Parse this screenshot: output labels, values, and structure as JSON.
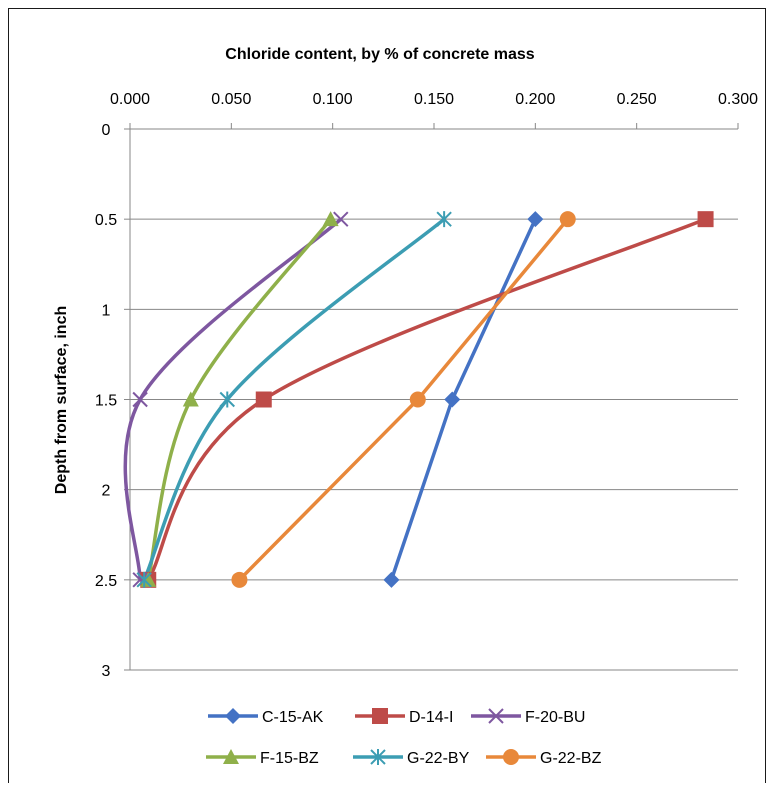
{
  "chart_data": {
    "type": "scatter",
    "x_title": "Chloride content, by % of concrete mass",
    "y_title": "Depth from surface, inch",
    "x_axis": {
      "min": 0.0,
      "max": 0.3,
      "ticks": [
        "0.000",
        "0.050",
        "0.100",
        "0.150",
        "0.200",
        "0.250",
        "0.300"
      ],
      "position": "top"
    },
    "y_axis": {
      "min": 0,
      "max": 3,
      "reversed": true,
      "ticks": [
        "0",
        "0.5",
        "1",
        "1.5",
        "2",
        "2.5",
        "3"
      ]
    },
    "grid": "horizontal",
    "legend_position": "bottom",
    "series": [
      {
        "name": "C-15-AK",
        "color": "#4472C4",
        "marker": "diamond",
        "smooth": false,
        "points": [
          [
            0.2,
            0.5
          ],
          [
            0.159,
            1.5
          ],
          [
            0.129,
            2.5
          ]
        ]
      },
      {
        "name": "D-14-I",
        "color": "#BE4B48",
        "marker": "square",
        "smooth": true,
        "points": [
          [
            0.284,
            0.5
          ],
          [
            0.066,
            1.5
          ],
          [
            0.009,
            2.5
          ]
        ]
      },
      {
        "name": "F-20-BU",
        "color": "#7E57A0",
        "marker": "x",
        "smooth": true,
        "points": [
          [
            0.104,
            0.5
          ],
          [
            0.005,
            1.5
          ],
          [
            0.005,
            2.5
          ]
        ]
      },
      {
        "name": "F-15-BZ",
        "color": "#8FB04A",
        "marker": "triangle",
        "smooth": true,
        "points": [
          [
            0.099,
            0.5
          ],
          [
            0.03,
            1.5
          ],
          [
            0.009,
            2.5
          ]
        ]
      },
      {
        "name": "G-22-BY",
        "color": "#3C9DB3",
        "marker": "asterisk",
        "smooth": true,
        "points": [
          [
            0.155,
            0.5
          ],
          [
            0.048,
            1.5
          ],
          [
            0.007,
            2.5
          ]
        ]
      },
      {
        "name": "G-22-BZ",
        "color": "#E8883A",
        "marker": "circle",
        "smooth": false,
        "points": [
          [
            0.216,
            0.5
          ],
          [
            0.142,
            1.5
          ],
          [
            0.054,
            2.5
          ]
        ]
      }
    ]
  }
}
